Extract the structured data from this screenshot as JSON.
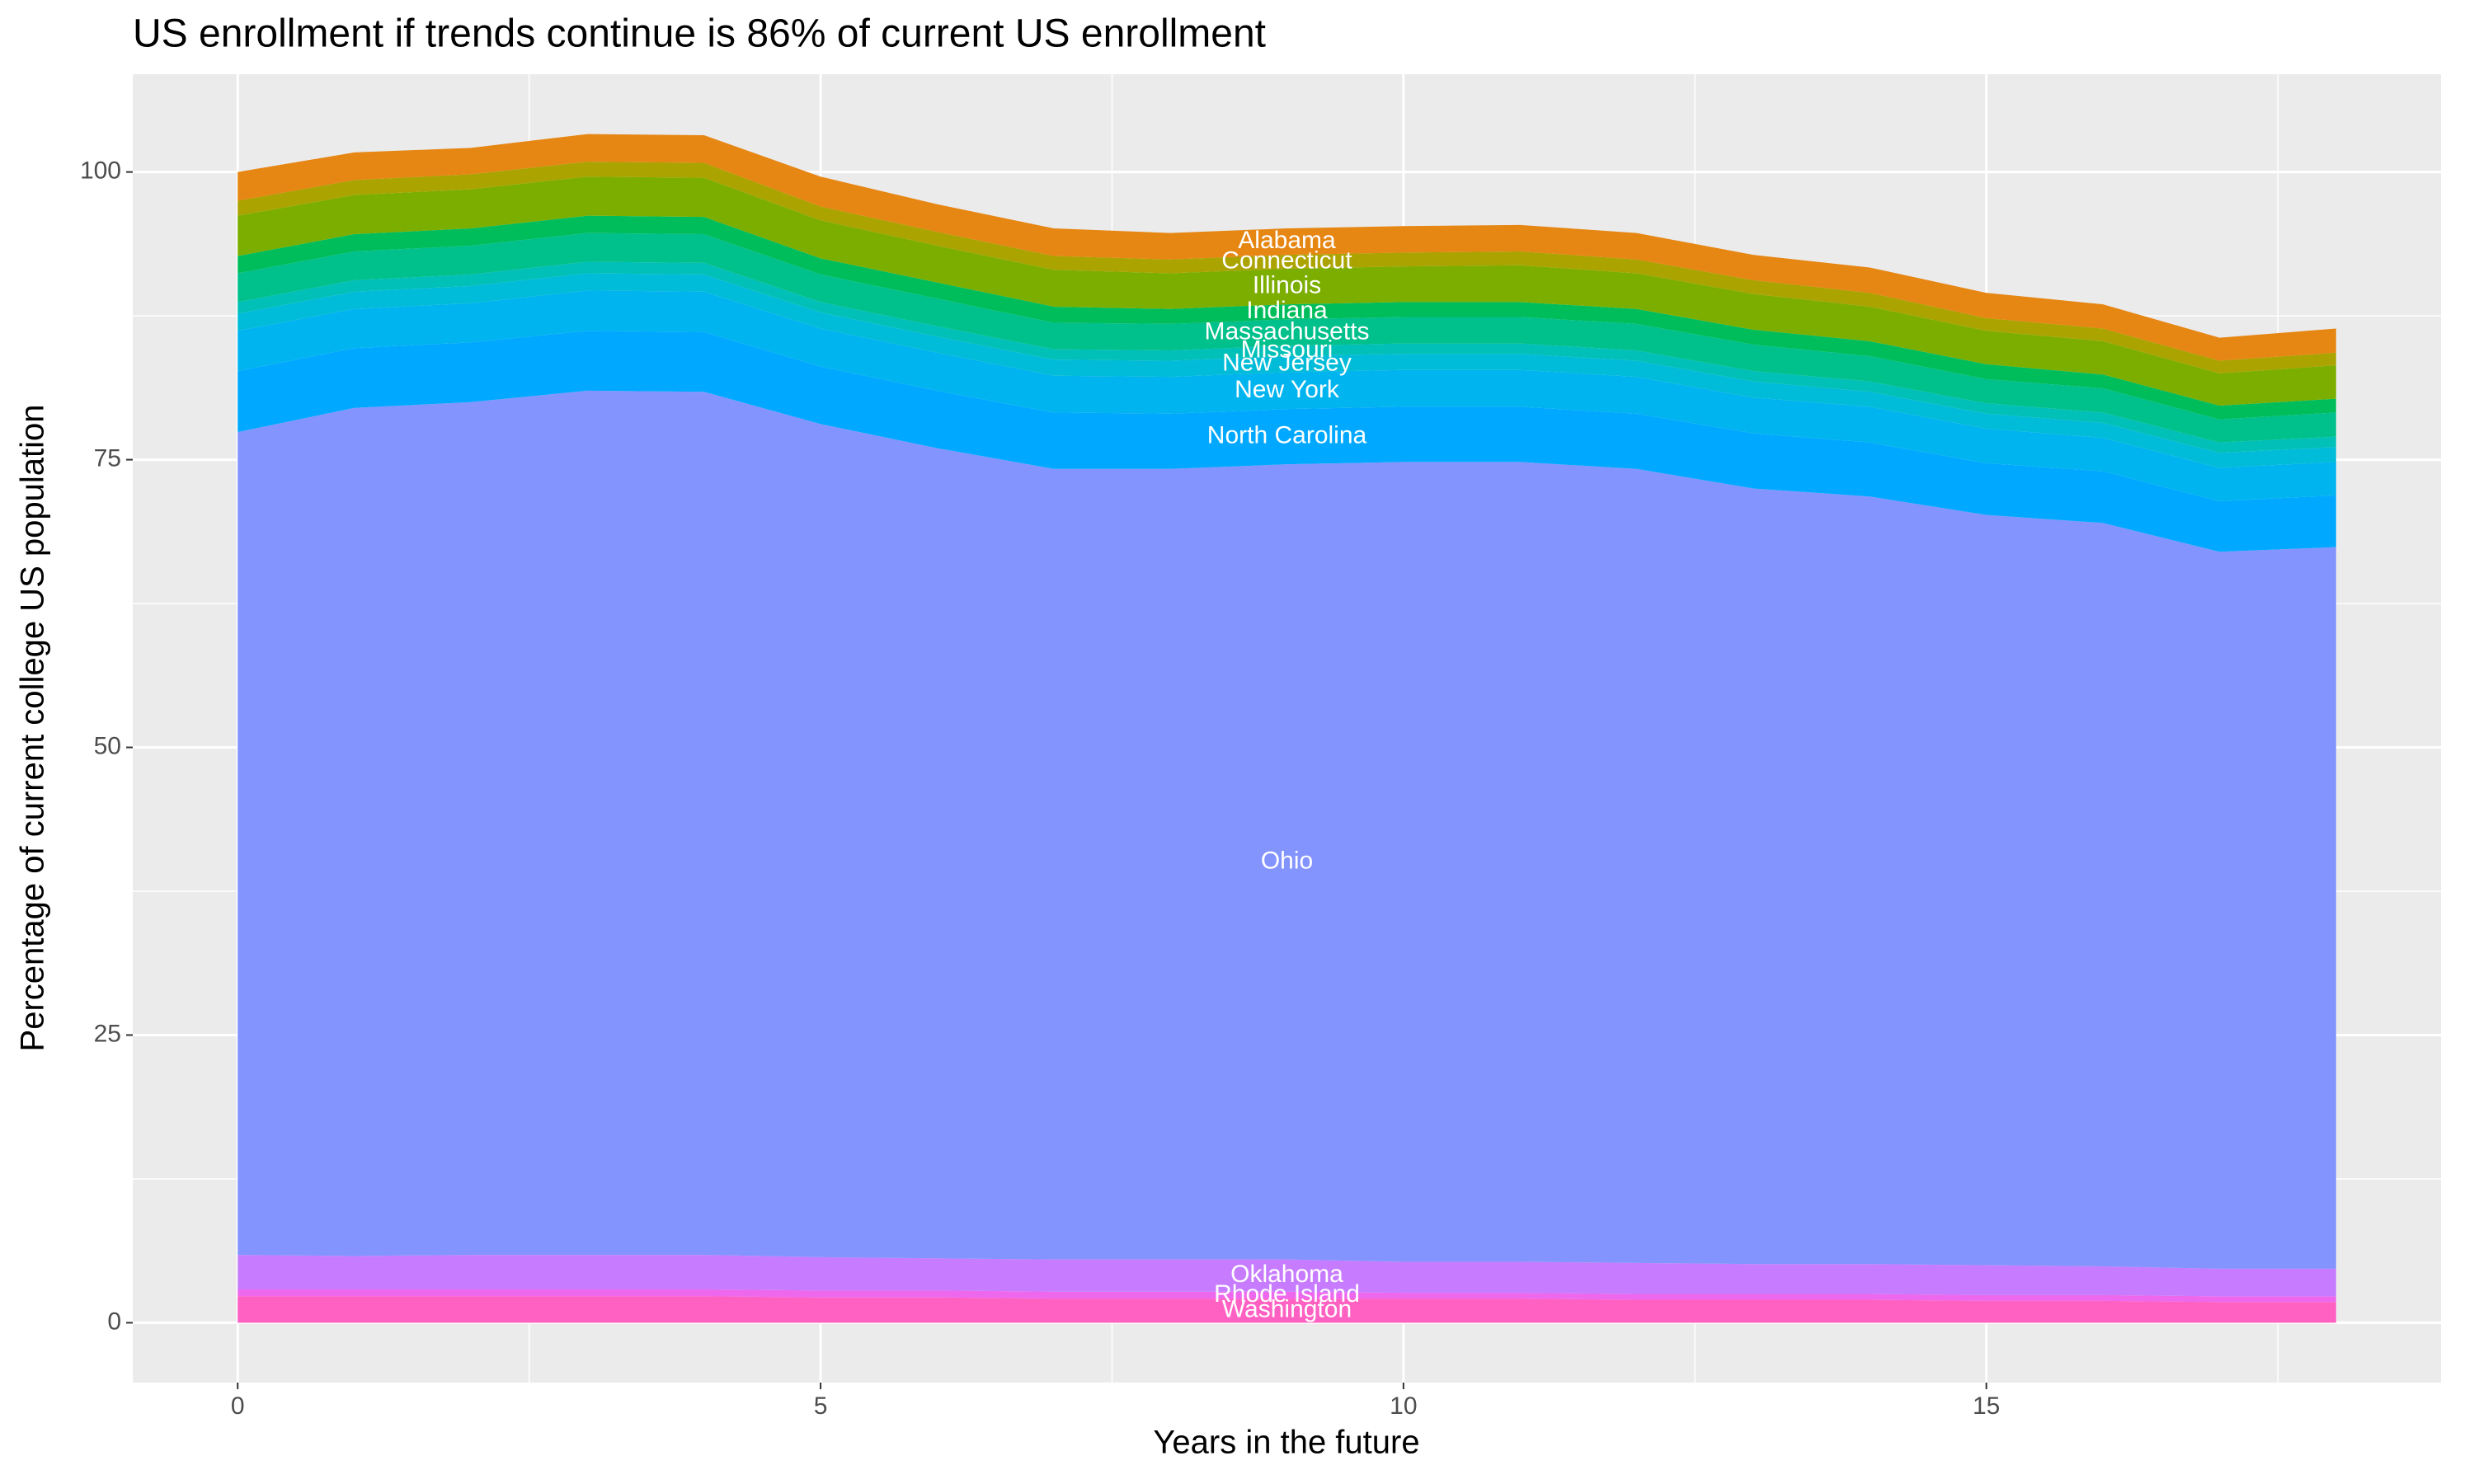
{
  "chart_data": {
    "type": "stacked_area",
    "title": "US enrollment if trends continue is 86% of current US enrollment",
    "x_label": "Years in the future",
    "y_label": "Percentage of current college US population",
    "x": [
      0,
      1,
      2,
      3,
      4,
      5,
      6,
      7,
      8,
      9,
      10,
      11,
      12,
      13,
      14,
      15,
      16,
      17,
      18
    ],
    "xlim": [
      -0.9,
      18.9
    ],
    "xticks": [
      0,
      5,
      10,
      15
    ],
    "ylim": [
      -5.2,
      108.5
    ],
    "yticks": [
      0,
      25,
      50,
      75,
      100
    ],
    "grid": true,
    "series": [
      {
        "name": "Washington",
        "color": "#FF61C3",
        "values": [
          2.3,
          2.3,
          2.3,
          2.3,
          2.3,
          2.2,
          2.2,
          2.1,
          2.1,
          2.1,
          2.1,
          2.1,
          2.0,
          2.0,
          2.0,
          1.9,
          1.9,
          1.8,
          1.8
        ]
      },
      {
        "name": "Rhode Island",
        "color": "#ED68ED",
        "values": [
          0.6,
          0.6,
          0.6,
          0.6,
          0.6,
          0.6,
          0.6,
          0.6,
          0.6,
          0.6,
          0.5,
          0.5,
          0.5,
          0.5,
          0.5,
          0.5,
          0.5,
          0.5,
          0.5
        ]
      },
      {
        "name": "Oklahoma",
        "color": "#C77CFF",
        "values": [
          3.0,
          2.9,
          3.0,
          3.0,
          3.0,
          2.9,
          2.8,
          2.8,
          2.8,
          2.8,
          2.7,
          2.7,
          2.7,
          2.6,
          2.6,
          2.6,
          2.5,
          2.4,
          2.4
        ]
      },
      {
        "name": "Ohio",
        "color": "#8494FF",
        "values": [
          71.5,
          73.7,
          74.1,
          75.1,
          75.0,
          72.4,
          70.4,
          68.7,
          68.7,
          69.1,
          69.5,
          69.5,
          69.0,
          67.4,
          66.7,
          65.2,
          64.6,
          62.3,
          62.7
        ]
      },
      {
        "name": "North Carolina",
        "color": "#00A9FF",
        "values": [
          5.3,
          5.2,
          5.2,
          5.2,
          5.2,
          5.0,
          5.0,
          4.9,
          4.8,
          4.8,
          4.8,
          4.8,
          4.8,
          4.8,
          4.7,
          4.5,
          4.5,
          4.4,
          4.5
        ]
      },
      {
        "name": "New York",
        "color": "#00B4EF",
        "values": [
          3.5,
          3.4,
          3.4,
          3.5,
          3.5,
          3.3,
          3.3,
          3.2,
          3.2,
          3.2,
          3.2,
          3.2,
          3.2,
          3.1,
          3.1,
          3.0,
          2.9,
          2.9,
          2.9
        ]
      },
      {
        "name": "New Jersey",
        "color": "#00BCD8",
        "values": [
          1.5,
          1.5,
          1.5,
          1.5,
          1.5,
          1.4,
          1.4,
          1.4,
          1.4,
          1.4,
          1.4,
          1.4,
          1.4,
          1.4,
          1.3,
          1.3,
          1.3,
          1.3,
          1.3
        ]
      },
      {
        "name": "Missouri",
        "color": "#00C0B8",
        "values": [
          1.0,
          1.0,
          1.0,
          1.0,
          1.0,
          0.9,
          0.9,
          0.9,
          0.9,
          0.9,
          0.9,
          0.9,
          0.9,
          0.9,
          0.9,
          0.9,
          0.9,
          0.9,
          0.9
        ]
      },
      {
        "name": "Massachusetts",
        "color": "#00C08B",
        "values": [
          2.5,
          2.5,
          2.5,
          2.5,
          2.5,
          2.4,
          2.4,
          2.3,
          2.3,
          2.3,
          2.3,
          2.3,
          2.3,
          2.3,
          2.2,
          2.1,
          2.1,
          2.0,
          2.1
        ]
      },
      {
        "name": "Indiana",
        "color": "#00BD5C",
        "values": [
          1.5,
          1.5,
          1.5,
          1.5,
          1.5,
          1.4,
          1.4,
          1.4,
          1.3,
          1.3,
          1.3,
          1.3,
          1.3,
          1.3,
          1.3,
          1.3,
          1.2,
          1.2,
          1.2
        ]
      },
      {
        "name": "Illinois",
        "color": "#7CAE00",
        "values": [
          3.5,
          3.4,
          3.4,
          3.4,
          3.4,
          3.3,
          3.2,
          3.2,
          3.1,
          3.1,
          3.1,
          3.2,
          3.1,
          3.1,
          3.0,
          2.9,
          2.9,
          2.8,
          2.9
        ]
      },
      {
        "name": "Connecticut",
        "color": "#ABA300",
        "values": [
          1.3,
          1.3,
          1.3,
          1.3,
          1.3,
          1.2,
          1.2,
          1.2,
          1.2,
          1.2,
          1.2,
          1.2,
          1.2,
          1.2,
          1.2,
          1.1,
          1.1,
          1.1,
          1.1
        ]
      },
      {
        "name": "Alabama",
        "color": "#E68613",
        "values": [
          2.5,
          2.4,
          2.3,
          2.4,
          2.4,
          2.6,
          2.4,
          2.4,
          2.3,
          2.3,
          2.3,
          2.3,
          2.3,
          2.2,
          2.2,
          2.2,
          2.1,
          2.0,
          2.1
        ]
      }
    ]
  }
}
